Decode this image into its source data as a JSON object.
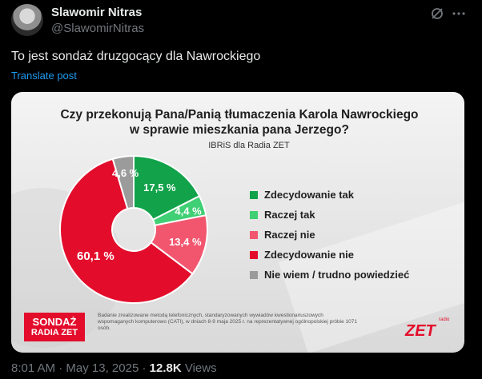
{
  "author": {
    "name": "Slawomir Nitras",
    "handle": "@SlawomirNitras"
  },
  "post": {
    "text": "To jest sondaż druzgocący dla Nawrockiego",
    "translate_label": "Translate post"
  },
  "meta": {
    "time": "8:01 AM",
    "separator1": " · ",
    "date": "May 13, 2025",
    "separator2": " · ",
    "views_count": "12.8K",
    "views_label": " Views"
  },
  "poll_graphic": {
    "title_line1": "Czy przekonują Pana/Panią tłumaczenia Karola Nawrockiego",
    "title_line2": "w sprawie mieszkania pana Jerzego?",
    "subtitle": "IBRiS dla Radia ZET",
    "brand_line1": "SONDAŻ",
    "brand_line2": "RADIA ZET",
    "footnote": "Badanie zrealizowane metodą telefonicznych, standaryzowanych wywiadów kwestionariuszowych wspomaganych komputerowo (CATI), w dniach 8-9 maja 2025 r. na reprezentatywnej ogólnopolskiej próbie 1071 osób.",
    "logo_small": "radio",
    "logo_main": "ZET"
  },
  "chart_data": {
    "type": "pie",
    "categories": [
      "Zdecydowanie tak",
      "Raczej tak",
      "Raczej nie",
      "Zdecydowanie nie",
      "Nie wiem / trudno powiedzieć"
    ],
    "values": [
      17.5,
      4.4,
      13.4,
      60.1,
      4.6
    ],
    "value_labels": [
      "17,5 %",
      "4,4 %",
      "13,4 %",
      "60,1 %",
      "4,6 %"
    ],
    "colors": [
      "#11a24a",
      "#3fcf74",
      "#f2566f",
      "#e30d2b",
      "#9b9b9b"
    ],
    "legend": "right",
    "donut": true
  },
  "colors": {
    "background": "#000000",
    "link": "#1d9bf0",
    "muted": "#71767b"
  },
  "icons": {
    "grok": "grok-icon",
    "more": "more-icon"
  }
}
